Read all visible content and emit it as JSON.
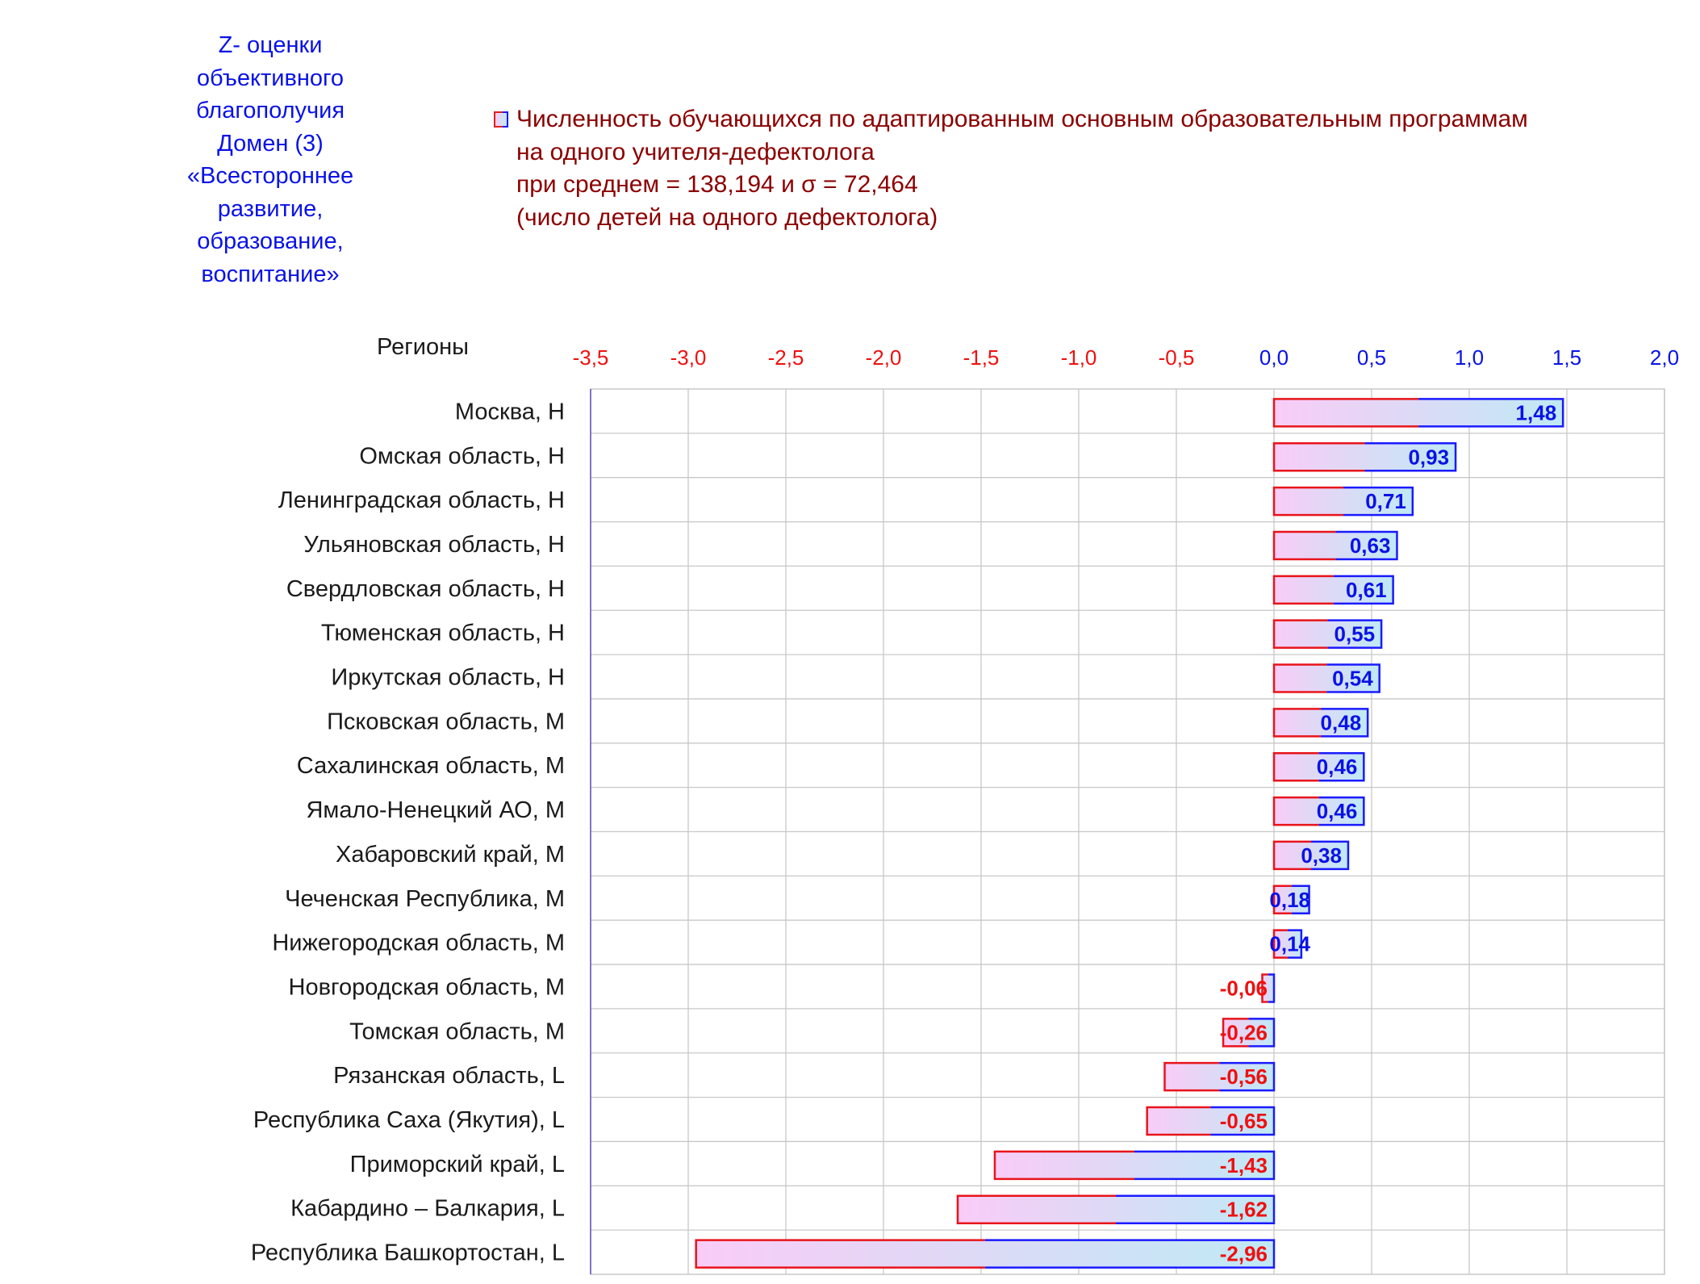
{
  "side_title": "Z- оценки\nобъективного\nблагополучия\nДомен (3)\n«Всестороннее\nразвитие,\nобразование,\nвоспитание»",
  "legend": {
    "lines": [
      "Численность обучающихся по адаптированным основным образовательным программам",
      "на одного учителя-дефектолога",
      "при среднем = 138,194  и σ = 72,464",
      "(число детей на одного дефектолога)"
    ]
  },
  "regions_label": "Регионы",
  "colors": {
    "negative_text": "#ee1111",
    "positive_text": "#0a12e6",
    "bar_fill_start": "#f9ccf7",
    "bar_fill_end": "#bfe9f5",
    "grid": "#c8c8c8"
  },
  "chart_data": {
    "type": "bar",
    "orientation": "horizontal",
    "xlim": [
      -3.5,
      2.0
    ],
    "x_ticks": [
      "-3,5",
      "-3,0",
      "-2,5",
      "-2,0",
      "-1,5",
      "-1,0",
      "-0,5",
      "0,0",
      "0,5",
      "1,0",
      "1,5",
      "2,0"
    ],
    "x_tick_values": [
      -3.5,
      -3.0,
      -2.5,
      -2.0,
      -1.5,
      -1.0,
      -0.5,
      0.0,
      0.5,
      1.0,
      1.5,
      2.0
    ],
    "grid": true,
    "categories": [
      "Москва,  H",
      "Омская область,  H",
      "Ленинградская область,  H",
      "Ульяновская область,  H",
      "Свердловская область,  H",
      "Тюменская область,  H",
      "Иркутская область,  H",
      "Псковская область,  M",
      "Сахалинская область,  M",
      "Ямало-Ненецкий АО,  M",
      "Хабаровский край,  M",
      "Чеченская Республика,  M",
      "Нижегородская область,  M",
      "Новгородская область,  M",
      "Томская область,  M",
      "Рязанская область,  L",
      "Республика Саха (Якутия),  L",
      "Приморский край,  L",
      "Кабардино – Балкария,  L",
      "Республика Башкортостан,  L"
    ],
    "values": [
      1.48,
      0.93,
      0.71,
      0.63,
      0.61,
      0.55,
      0.54,
      0.48,
      0.46,
      0.46,
      0.38,
      0.18,
      0.14,
      -0.06,
      -0.26,
      -0.56,
      -0.65,
      -1.43,
      -1.62,
      -2.96
    ],
    "value_labels": [
      "1,48",
      "0,93",
      "0,71",
      "0,63",
      "0,61",
      "0,55",
      "0,54",
      "0,48",
      "0,46",
      "0,46",
      "0,38",
      "0,18",
      "0,14",
      "-0,06",
      "-0,26",
      "-0,56",
      "-0,65",
      "-1,43",
      "-1,62",
      "-2,96"
    ]
  }
}
